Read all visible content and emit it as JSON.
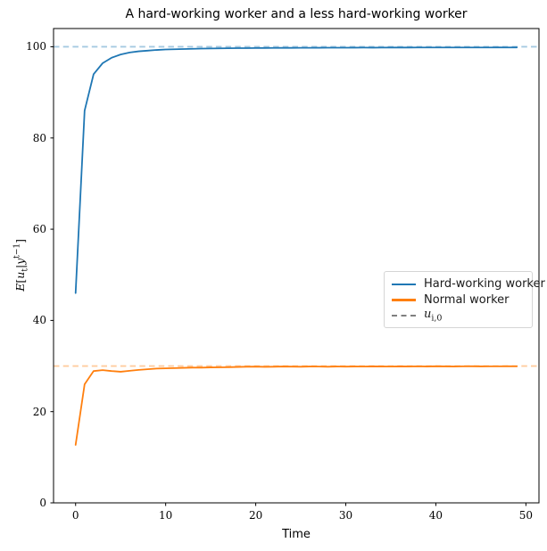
{
  "title": "A hard-working worker and a less hard-working worker",
  "xlabel": "Time",
  "ylabel": {
    "e": "E",
    "lb": "[",
    "u": "u",
    "usub": "t",
    "bar": "|",
    "y": "y",
    "ysup": "t−1",
    "rb": "]"
  },
  "axes": {
    "xlim": [
      -2.45,
      51.45
    ],
    "ylim": [
      0,
      104
    ],
    "xticks": [
      0,
      10,
      20,
      30,
      40,
      50
    ],
    "yticks": [
      0,
      20,
      40,
      60,
      80,
      100
    ]
  },
  "legend": {
    "entries": [
      {
        "label": "Hard-working worker",
        "color": "#1f77b4",
        "style": "solid"
      },
      {
        "label": "Normal worker",
        "color": "#ff7f0e",
        "style": "solid"
      },
      {
        "base": "u",
        "sub": "i,0",
        "color": "#7f7f7f",
        "style": "dashed"
      }
    ]
  },
  "chart_data": {
    "type": "line",
    "title": "A hard-working worker and a less hard-working worker",
    "xlabel": "Time",
    "ylabel": "E[u_t|y^(t-1)]",
    "xlim": [
      -2.45,
      51.45
    ],
    "ylim": [
      0,
      104
    ],
    "grid": false,
    "legend_position": "center right",
    "x": [
      0,
      1,
      2,
      3,
      4,
      5,
      6,
      7,
      8,
      9,
      10,
      11,
      12,
      13,
      14,
      15,
      16,
      17,
      18,
      19,
      20,
      21,
      22,
      23,
      24,
      25,
      26,
      27,
      28,
      29,
      30,
      31,
      32,
      33,
      34,
      35,
      36,
      37,
      38,
      39,
      40,
      41,
      42,
      43,
      44,
      45,
      46,
      47,
      48,
      49
    ],
    "series": [
      {
        "name": "Hard-working worker",
        "color": "#1f77b4",
        "style": "solid",
        "values": [
          46.0,
          86.0,
          94.0,
          96.4,
          97.6,
          98.3,
          98.75,
          99.0,
          99.15,
          99.3,
          99.4,
          99.45,
          99.5,
          99.55,
          99.6,
          99.62,
          99.65,
          99.68,
          99.7,
          99.7,
          99.72,
          99.74,
          99.75,
          99.76,
          99.76,
          99.78,
          99.78,
          99.79,
          99.8,
          99.8,
          99.8,
          99.81,
          99.82,
          99.81,
          99.82,
          99.83,
          99.83,
          99.83,
          99.84,
          99.84,
          99.84,
          99.85,
          99.84,
          99.85,
          99.85,
          99.85,
          99.85,
          99.86,
          99.85,
          99.86
        ]
      },
      {
        "name": "Normal worker",
        "color": "#ff7f0e",
        "style": "solid",
        "values": [
          12.7,
          26.0,
          28.9,
          29.1,
          28.9,
          28.75,
          28.95,
          29.15,
          29.3,
          29.45,
          29.5,
          29.55,
          29.6,
          29.65,
          29.65,
          29.7,
          29.72,
          29.75,
          29.8,
          29.85,
          29.87,
          29.82,
          29.85,
          29.9,
          29.87,
          29.85,
          29.9,
          29.88,
          29.85,
          29.9,
          29.87,
          29.9,
          29.88,
          29.92,
          29.9,
          29.88,
          29.92,
          29.9,
          29.93,
          29.9,
          29.95,
          29.92,
          29.9,
          29.93,
          29.95,
          29.92,
          29.94,
          29.93,
          29.95,
          29.94
        ]
      }
    ],
    "reference_lines": [
      {
        "name": "u_i0 hard-working",
        "y": 100,
        "color": "rgba(31,119,180,0.4)",
        "style": "dashed"
      },
      {
        "name": "u_i0 normal",
        "y": 30,
        "color": "rgba(255,127,14,0.4)",
        "style": "dashed"
      }
    ]
  }
}
